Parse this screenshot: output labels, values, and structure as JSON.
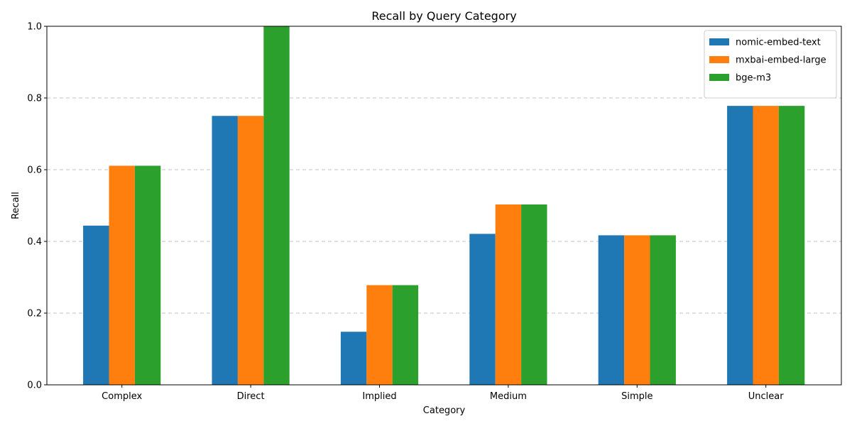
{
  "chart_data": {
    "type": "bar",
    "title": "Recall by Query Category",
    "xlabel": "Category",
    "ylabel": "Recall",
    "ylim": [
      0,
      1.0
    ],
    "yticks": [
      "0.0",
      "0.2",
      "0.4",
      "0.6",
      "0.8",
      "1.0"
    ],
    "categories": [
      "Complex",
      "Direct",
      "Implied",
      "Medium",
      "Simple",
      "Unclear"
    ],
    "series": [
      {
        "name": "nomic-embed-text",
        "color": "#1f77b4",
        "values": [
          0.444,
          0.75,
          0.148,
          0.421,
          0.417,
          0.778
        ]
      },
      {
        "name": "mxbai-embed-large",
        "color": "#ff7f0e",
        "values": [
          0.611,
          0.75,
          0.278,
          0.503,
          0.417,
          0.778
        ]
      },
      {
        "name": "bge-m3",
        "color": "#2ca02c",
        "values": [
          0.611,
          1.0,
          0.278,
          0.503,
          0.417,
          0.778
        ]
      }
    ],
    "grid": "y-dashed",
    "legend_position": "top-right"
  }
}
